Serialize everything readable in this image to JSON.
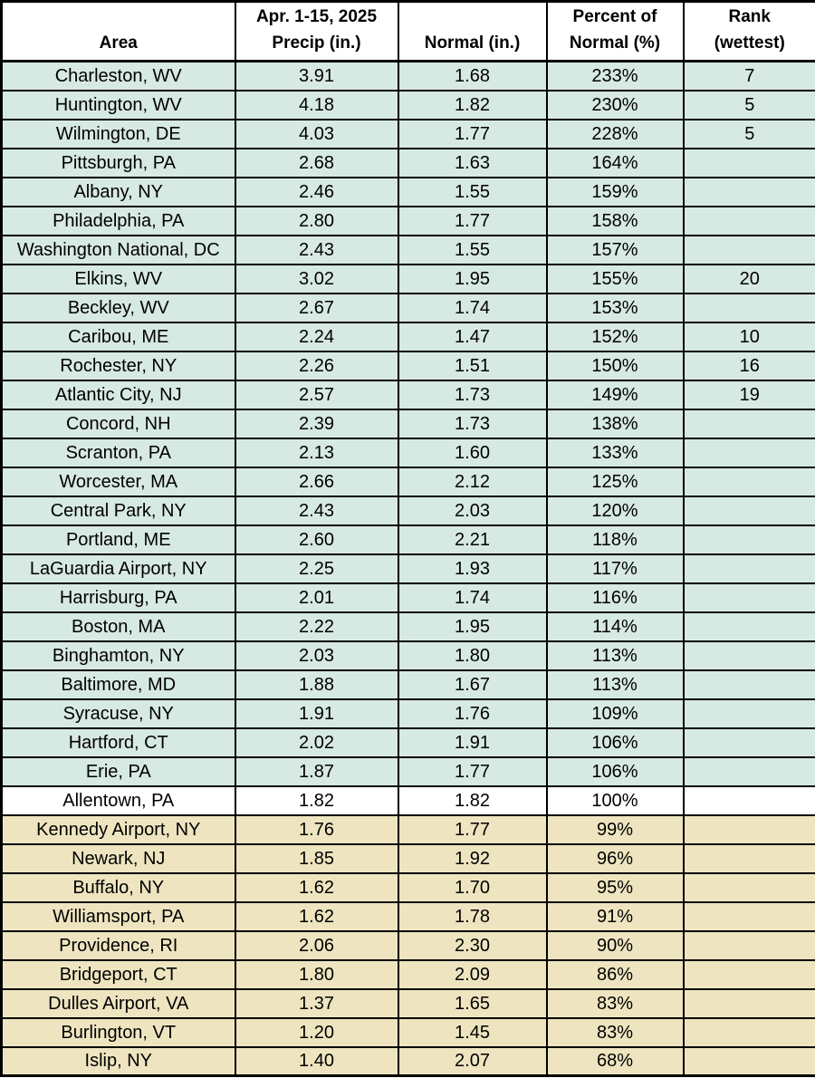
{
  "colors": {
    "above_normal_row_fill": "#d7e9e3",
    "normal_row_fill": "#ffffff",
    "below_normal_row_fill": "#eee5c0",
    "header_fill": "#ffffff",
    "grid_border": "#000000",
    "text": "#000000"
  },
  "chart_data": {
    "type": "table",
    "columns": [
      {
        "key": "area",
        "line1": "",
        "line2": "Area"
      },
      {
        "key": "precip",
        "line1": "Apr. 1-15, 2025",
        "line2": "Precip (in.)"
      },
      {
        "key": "normal",
        "line1": "",
        "line2": "Normal (in.)"
      },
      {
        "key": "percent",
        "line1": "Percent of",
        "line2": "Normal (%)"
      },
      {
        "key": "rank",
        "line1": "Rank",
        "line2": "(wettest)"
      }
    ],
    "rows": [
      {
        "area": "Charleston, WV",
        "precip": "3.91",
        "normal": "1.68",
        "percent": "233%",
        "rank": "7",
        "status": "above"
      },
      {
        "area": "Huntington, WV",
        "precip": "4.18",
        "normal": "1.82",
        "percent": "230%",
        "rank": "5",
        "status": "above"
      },
      {
        "area": "Wilmington, DE",
        "precip": "4.03",
        "normal": "1.77",
        "percent": "228%",
        "rank": "5",
        "status": "above"
      },
      {
        "area": "Pittsburgh, PA",
        "precip": "2.68",
        "normal": "1.63",
        "percent": "164%",
        "rank": "",
        "status": "above"
      },
      {
        "area": "Albany, NY",
        "precip": "2.46",
        "normal": "1.55",
        "percent": "159%",
        "rank": "",
        "status": "above"
      },
      {
        "area": "Philadelphia, PA",
        "precip": "2.80",
        "normal": "1.77",
        "percent": "158%",
        "rank": "",
        "status": "above"
      },
      {
        "area": "Washington National, DC",
        "precip": "2.43",
        "normal": "1.55",
        "percent": "157%",
        "rank": "",
        "status": "above"
      },
      {
        "area": "Elkins, WV",
        "precip": "3.02",
        "normal": "1.95",
        "percent": "155%",
        "rank": "20",
        "status": "above"
      },
      {
        "area": "Beckley, WV",
        "precip": "2.67",
        "normal": "1.74",
        "percent": "153%",
        "rank": "",
        "status": "above"
      },
      {
        "area": "Caribou, ME",
        "precip": "2.24",
        "normal": "1.47",
        "percent": "152%",
        "rank": "10",
        "status": "above"
      },
      {
        "area": "Rochester, NY",
        "precip": "2.26",
        "normal": "1.51",
        "percent": "150%",
        "rank": "16",
        "status": "above"
      },
      {
        "area": "Atlantic City, NJ",
        "precip": "2.57",
        "normal": "1.73",
        "percent": "149%",
        "rank": "19",
        "status": "above"
      },
      {
        "area": "Concord, NH",
        "precip": "2.39",
        "normal": "1.73",
        "percent": "138%",
        "rank": "",
        "status": "above"
      },
      {
        "area": "Scranton, PA",
        "precip": "2.13",
        "normal": "1.60",
        "percent": "133%",
        "rank": "",
        "status": "above"
      },
      {
        "area": "Worcester, MA",
        "precip": "2.66",
        "normal": "2.12",
        "percent": "125%",
        "rank": "",
        "status": "above"
      },
      {
        "area": "Central Park, NY",
        "precip": "2.43",
        "normal": "2.03",
        "percent": "120%",
        "rank": "",
        "status": "above"
      },
      {
        "area": "Portland, ME",
        "precip": "2.60",
        "normal": "2.21",
        "percent": "118%",
        "rank": "",
        "status": "above"
      },
      {
        "area": "LaGuardia Airport, NY",
        "precip": "2.25",
        "normal": "1.93",
        "percent": "117%",
        "rank": "",
        "status": "above"
      },
      {
        "area": "Harrisburg, PA",
        "precip": "2.01",
        "normal": "1.74",
        "percent": "116%",
        "rank": "",
        "status": "above"
      },
      {
        "area": "Boston, MA",
        "precip": "2.22",
        "normal": "1.95",
        "percent": "114%",
        "rank": "",
        "status": "above"
      },
      {
        "area": "Binghamton, NY",
        "precip": "2.03",
        "normal": "1.80",
        "percent": "113%",
        "rank": "",
        "status": "above"
      },
      {
        "area": "Baltimore, MD",
        "precip": "1.88",
        "normal": "1.67",
        "percent": "113%",
        "rank": "",
        "status": "above"
      },
      {
        "area": "Syracuse, NY",
        "precip": "1.91",
        "normal": "1.76",
        "percent": "109%",
        "rank": "",
        "status": "above"
      },
      {
        "area": "Hartford, CT",
        "precip": "2.02",
        "normal": "1.91",
        "percent": "106%",
        "rank": "",
        "status": "above"
      },
      {
        "area": "Erie, PA",
        "precip": "1.87",
        "normal": "1.77",
        "percent": "106%",
        "rank": "",
        "status": "above"
      },
      {
        "area": "Allentown, PA",
        "precip": "1.82",
        "normal": "1.82",
        "percent": "100%",
        "rank": "",
        "status": "normal"
      },
      {
        "area": "Kennedy Airport, NY",
        "precip": "1.76",
        "normal": "1.77",
        "percent": "99%",
        "rank": "",
        "status": "below"
      },
      {
        "area": "Newark, NJ",
        "precip": "1.85",
        "normal": "1.92",
        "percent": "96%",
        "rank": "",
        "status": "below"
      },
      {
        "area": "Buffalo, NY",
        "precip": "1.62",
        "normal": "1.70",
        "percent": "95%",
        "rank": "",
        "status": "below"
      },
      {
        "area": "Williamsport, PA",
        "precip": "1.62",
        "normal": "1.78",
        "percent": "91%",
        "rank": "",
        "status": "below"
      },
      {
        "area": "Providence, RI",
        "precip": "2.06",
        "normal": "2.30",
        "percent": "90%",
        "rank": "",
        "status": "below"
      },
      {
        "area": "Bridgeport, CT",
        "precip": "1.80",
        "normal": "2.09",
        "percent": "86%",
        "rank": "",
        "status": "below"
      },
      {
        "area": "Dulles Airport, VA",
        "precip": "1.37",
        "normal": "1.65",
        "percent": "83%",
        "rank": "",
        "status": "below"
      },
      {
        "area": "Burlington, VT",
        "precip": "1.20",
        "normal": "1.45",
        "percent": "83%",
        "rank": "",
        "status": "below"
      },
      {
        "area": "Islip, NY",
        "precip": "1.40",
        "normal": "2.07",
        "percent": "68%",
        "rank": "",
        "status": "below"
      }
    ]
  }
}
